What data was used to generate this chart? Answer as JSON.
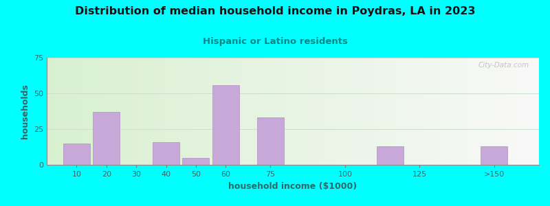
{
  "title": "Distribution of median household income in Poydras, LA in 2023",
  "subtitle": "Hispanic or Latino residents",
  "xlabel": "household income ($1000)",
  "ylabel": "households",
  "background_outer": "#00FFFF",
  "background_inner_left": "#d8f0d0",
  "background_inner_right": "#f8f8f8",
  "bar_color": "#c8a8d8",
  "bar_edge_color": "#b090c0",
  "title_color": "#111111",
  "subtitle_color": "#008888",
  "axis_label_color": "#336666",
  "tick_label_color": "#336666",
  "watermark": "City-Data.com",
  "ylim": [
    0,
    75
  ],
  "yticks": [
    0,
    25,
    50,
    75
  ],
  "bar_positions": [
    10,
    20,
    40,
    50,
    60,
    75,
    115,
    150
  ],
  "bar_heights": [
    15,
    37,
    16,
    5,
    56,
    33,
    13,
    13
  ],
  "bar_widths": [
    9,
    9,
    9,
    9,
    9,
    9,
    9,
    9
  ],
  "xtick_labels": [
    "10",
    "20",
    "30",
    "40",
    "50",
    "60",
    "75",
    "100",
    "125",
    ">150"
  ],
  "xtick_positions": [
    10,
    20,
    30,
    40,
    50,
    60,
    75,
    100,
    125,
    150
  ],
  "xlim": [
    0,
    165
  ]
}
